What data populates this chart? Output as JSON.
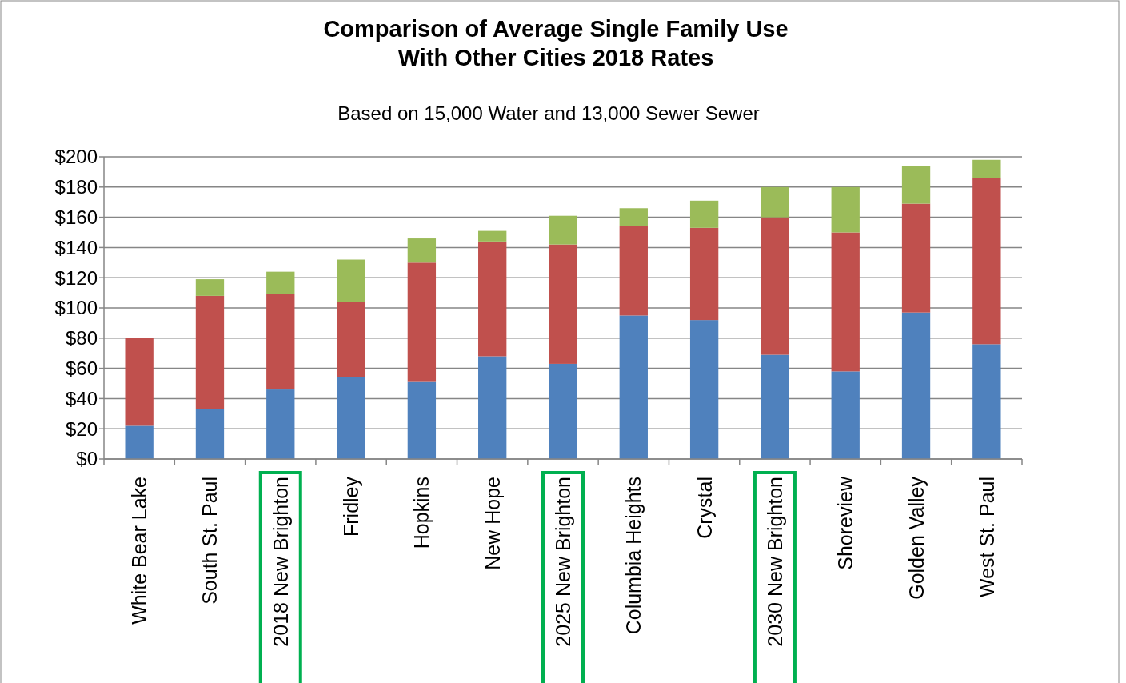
{
  "chart_data": {
    "type": "bar",
    "title": "Comparison of Average Single Family Use\nWith Other Cities 2018 Rates",
    "subtitle": "Based on 15,000 Water and 13,000 Sewer Sewer",
    "categories": [
      "White Bear Lake",
      "South St. Paul",
      "2018 New Brighton",
      "Fridley",
      "Hopkins",
      "New Hope",
      "2025 New Brighton",
      "Columbia Heights",
      "Crystal",
      "2030 New Brighton",
      "Shoreview",
      "Golden Valley",
      "West St. Paul"
    ],
    "stacked": true,
    "series": [
      {
        "color": "#4f81bd",
        "values": [
          22,
          33,
          46,
          54,
          51,
          68,
          63,
          95,
          92,
          69,
          58,
          97,
          76
        ]
      },
      {
        "color": "#c0504d",
        "values": [
          58,
          75,
          63,
          50,
          79,
          76,
          79,
          59,
          61,
          91,
          92,
          72,
          110
        ]
      },
      {
        "color": "#9bbb59",
        "values": [
          null,
          11,
          15,
          28,
          16,
          7,
          19,
          12,
          18,
          20,
          30,
          25,
          12
        ]
      }
    ],
    "ylim": [
      0,
      200
    ],
    "yticks": [
      {
        "value": 0,
        "label": "$0"
      },
      {
        "value": 20,
        "label": "$20"
      },
      {
        "value": 40,
        "label": "$40"
      },
      {
        "value": 60,
        "label": "$60"
      },
      {
        "value": 80,
        "label": "$80"
      },
      {
        "value": 100,
        "label": "$100"
      },
      {
        "value": 120,
        "label": "$120"
      },
      {
        "value": 140,
        "label": "$140"
      },
      {
        "value": 160,
        "label": "$160"
      },
      {
        "value": 180,
        "label": "$180"
      },
      {
        "value": 200,
        "label": "$200"
      }
    ],
    "grid": "y"
  }
}
